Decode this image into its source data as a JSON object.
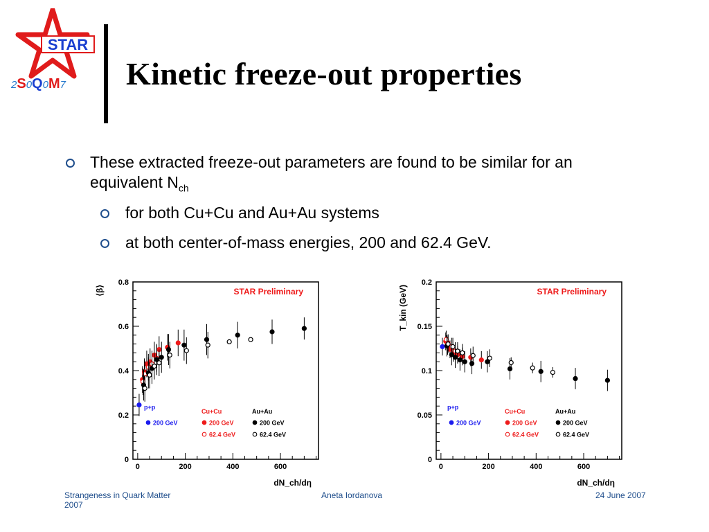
{
  "logo": {
    "star_text": "STAR",
    "conf_prefix": "2",
    "conf_s": "S",
    "conf_0a": "0",
    "conf_q": "Q",
    "conf_0b": "0",
    "conf_m": "M",
    "conf_suffix": "7"
  },
  "title": "Kinetic freeze-out properties",
  "bullets": {
    "b1_text": "These extracted freeze-out  parameters are found to be similar for an equivalent N",
    "b1_sub": "ch",
    "b2": "for both Cu+Cu and Au+Au systems",
    "b3": "at both center-of-mass energies, 200 and 62.4 GeV."
  },
  "footer": {
    "left": "Strangeness in Quark Matter 2007",
    "center": "Aneta Iordanova",
    "right": "24 June 2007"
  },
  "colors": {
    "pp": "#1a1aee",
    "cucu": "#ee1a1a",
    "auau": "#000000",
    "bullet": "#1f4e8c"
  },
  "chart_data": [
    {
      "type": "scatter",
      "title": "STAR Preliminary",
      "ylabel": "⟨β⟩",
      "xlabel": "dN_ch/dη",
      "xlim": [
        -20,
        760
      ],
      "ylim": [
        0,
        0.8
      ],
      "xticks": [
        0,
        200,
        400,
        600
      ],
      "yticks": [
        0,
        0.2,
        0.4,
        0.6,
        0.8
      ],
      "legend_groups": [
        "p+p",
        "Cu+Cu",
        "Au+Au"
      ],
      "series": [
        {
          "name": "200 GeV",
          "group": "p+p",
          "color": "#1a1aee",
          "filled": true,
          "points": [
            [
              6,
              0.245,
              0.05
            ]
          ]
        },
        {
          "name": "200 GeV",
          "group": "Cu+Cu",
          "color": "#ee1a1a",
          "filled": true,
          "points": [
            [
              20,
              0.36,
              0.06
            ],
            [
              28,
              0.395,
              0.06
            ],
            [
              38,
              0.43,
              0.06
            ],
            [
              52,
              0.44,
              0.06
            ],
            [
              70,
              0.47,
              0.06
            ],
            [
              90,
              0.495,
              0.06
            ],
            [
              125,
              0.505,
              0.06
            ],
            [
              170,
              0.525,
              0.06
            ]
          ]
        },
        {
          "name": "62.4 GeV",
          "group": "Cu+Cu",
          "color": "#ee1a1a",
          "filled": false,
          "points": [
            [
              22,
              0.35,
              0.06
            ],
            [
              30,
              0.385,
              0.06
            ],
            [
              45,
              0.415,
              0.06
            ],
            [
              60,
              0.43,
              0.06
            ],
            [
              80,
              0.455,
              0.06
            ]
          ]
        },
        {
          "name": "200 GeV",
          "group": "Au+Au",
          "color": "#000000",
          "filled": true,
          "points": [
            [
              25,
              0.335,
              0.07
            ],
            [
              45,
              0.39,
              0.07
            ],
            [
              60,
              0.41,
              0.07
            ],
            [
              80,
              0.45,
              0.07
            ],
            [
              100,
              0.46,
              0.07
            ],
            [
              130,
              0.495,
              0.07
            ],
            [
              195,
              0.515,
              0.07
            ],
            [
              290,
              0.54,
              0.07
            ],
            [
              420,
              0.56,
              0.06
            ],
            [
              565,
              0.575,
              0.055
            ],
            [
              700,
              0.59,
              0.05
            ]
          ]
        },
        {
          "name": "62.4 GeV",
          "group": "Au+Au",
          "color": "#000000",
          "filled": false,
          "points": [
            [
              30,
              0.32,
              0.06
            ],
            [
              50,
              0.38,
              0.06
            ],
            [
              70,
              0.42,
              0.06
            ],
            [
              90,
              0.435,
              0.06
            ],
            [
              135,
              0.47,
              0.06
            ],
            [
              205,
              0.49,
              0.06
            ],
            [
              295,
              0.515,
              0.06
            ],
            [
              385,
              0.53,
              0
            ],
            [
              475,
              0.54,
              0
            ]
          ]
        }
      ]
    },
    {
      "type": "scatter",
      "title": "STAR Preliminary",
      "ylabel": "T_kin (GeV)",
      "xlabel": "dN_ch/dη",
      "xlim": [
        -20,
        760
      ],
      "ylim": [
        0,
        0.2
      ],
      "xticks": [
        0,
        200,
        400,
        600
      ],
      "yticks": [
        0,
        0.05,
        0.1,
        0.15,
        0.2
      ],
      "legend_groups": [
        "p+p",
        "Cu+Cu",
        "Au+Au"
      ],
      "series": [
        {
          "name": "200 GeV",
          "group": "p+p",
          "color": "#1a1aee",
          "filled": true,
          "points": [
            [
              6,
              0.127,
              0.01
            ]
          ]
        },
        {
          "name": "200 GeV",
          "group": "Cu+Cu",
          "color": "#ee1a1a",
          "filled": true,
          "points": [
            [
              20,
              0.133,
              0.01
            ],
            [
              28,
              0.128,
              0.01
            ],
            [
              38,
              0.124,
              0.01
            ],
            [
              52,
              0.12,
              0.01
            ],
            [
              70,
              0.118,
              0.01
            ],
            [
              90,
              0.116,
              0.01
            ],
            [
              125,
              0.115,
              0.01
            ],
            [
              170,
              0.112,
              0.01
            ]
          ]
        },
        {
          "name": "62.4 GeV",
          "group": "Cu+Cu",
          "color": "#ee1a1a",
          "filled": false,
          "points": [
            [
              22,
              0.135,
              0.01
            ],
            [
              30,
              0.131,
              0.01
            ],
            [
              45,
              0.127,
              0.01
            ],
            [
              60,
              0.122,
              0.01
            ]
          ]
        },
        {
          "name": "200 GeV",
          "group": "Au+Au",
          "color": "#000000",
          "filled": true,
          "points": [
            [
              25,
              0.128,
              0.012
            ],
            [
              45,
              0.118,
              0.012
            ],
            [
              60,
              0.115,
              0.012
            ],
            [
              80,
              0.112,
              0.012
            ],
            [
              100,
              0.11,
              0.012
            ],
            [
              130,
              0.108,
              0.012
            ],
            [
              195,
              0.11,
              0.012
            ],
            [
              290,
              0.102,
              0.012
            ],
            [
              420,
              0.099,
              0.012
            ],
            [
              565,
              0.091,
              0.012
            ],
            [
              700,
              0.089,
              0.012
            ]
          ]
        },
        {
          "name": "62.4 GeV",
          "group": "Au+Au",
          "color": "#000000",
          "filled": false,
          "points": [
            [
              30,
              0.13,
              0.01
            ],
            [
              50,
              0.127,
              0.01
            ],
            [
              70,
              0.122,
              0.01
            ],
            [
              90,
              0.12,
              0.01
            ],
            [
              135,
              0.117,
              0.01
            ],
            [
              205,
              0.114,
              0.01
            ],
            [
              295,
              0.109,
              0.006
            ],
            [
              385,
              0.103,
              0.006
            ],
            [
              470,
              0.098,
              0.006
            ]
          ]
        }
      ]
    }
  ]
}
